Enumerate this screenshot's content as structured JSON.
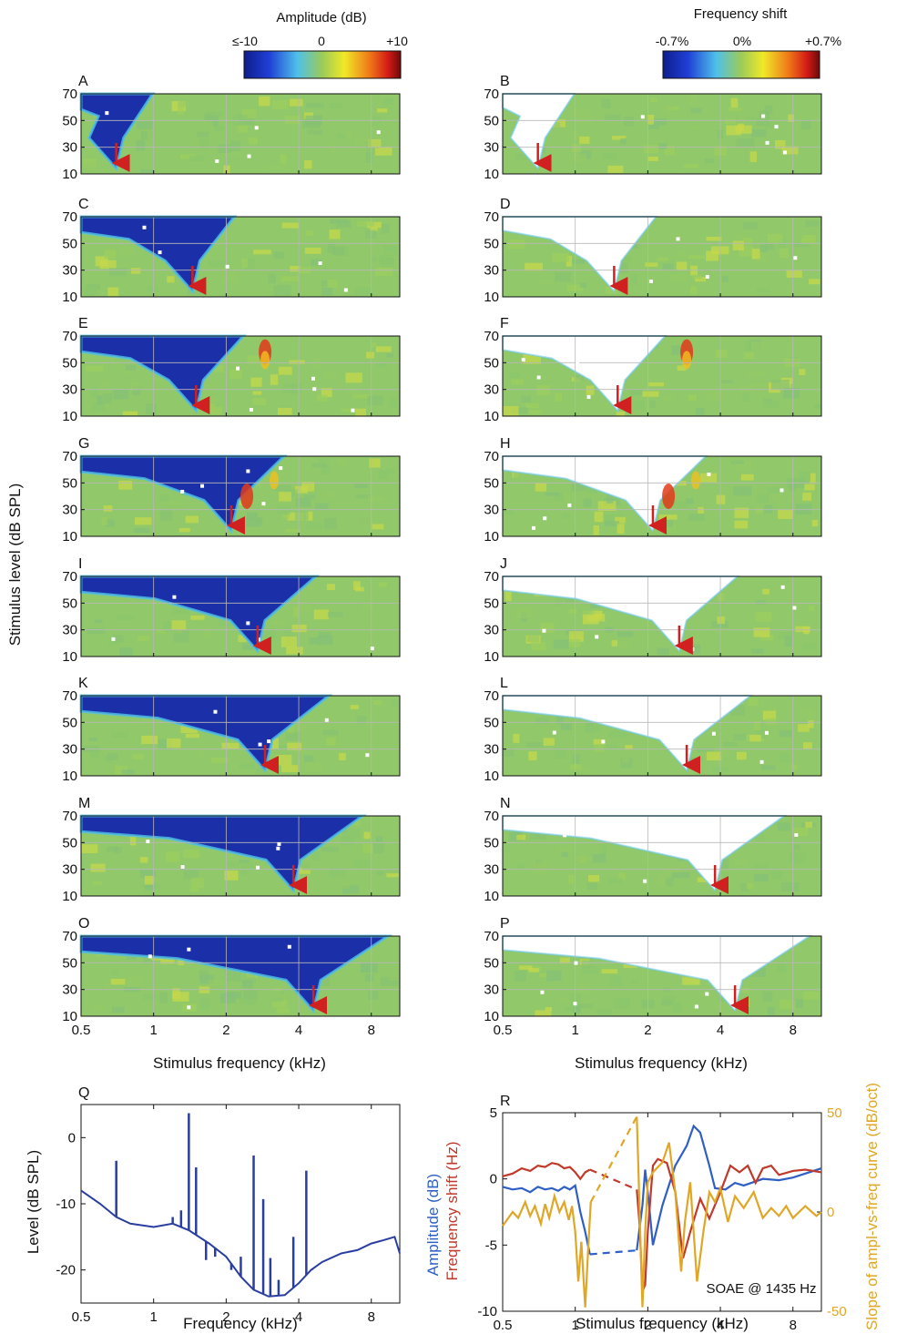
{
  "colorbars": {
    "amplitude": {
      "title": "Amplitude (dB)",
      "ticks": [
        "≤-10",
        "0",
        "+10"
      ]
    },
    "shift": {
      "title": "Frequency shift",
      "ticks": [
        "-0.7%",
        "0%",
        "+0.7%"
      ]
    }
  },
  "grid_axes": {
    "ylabel": "Stimulus level (dB SPL)",
    "xlabel": "Stimulus frequency (kHz)",
    "yticks": [
      "70",
      "50",
      "30",
      "10"
    ],
    "xticks": [
      "0.5",
      "1",
      "2",
      "4",
      "8"
    ]
  },
  "panel_labels": [
    "A",
    "B",
    "C",
    "D",
    "E",
    "F",
    "G",
    "H",
    "I",
    "J",
    "K",
    "L",
    "M",
    "N",
    "O",
    "P"
  ],
  "suppressor_khz": [
    0.7,
    1.45,
    1.5,
    2.1,
    2.7,
    2.9,
    3.8,
    4.6
  ],
  "chart_data": [
    {
      "panel": "Q",
      "type": "line",
      "xlabel": "Frequency (kHz)",
      "ylabel": "Level (dB SPL)",
      "xscale": "log",
      "xlim": [
        0.5,
        10.5
      ],
      "ylim": [
        -25,
        5
      ],
      "xticks": [
        "0.5",
        "1",
        "2",
        "4",
        "8"
      ],
      "yticks": [
        "0",
        "-10",
        "-20"
      ],
      "color": "#2a3ea0",
      "baseline": [
        [
          0.5,
          -8
        ],
        [
          0.6,
          -10
        ],
        [
          0.7,
          -12
        ],
        [
          0.8,
          -13
        ],
        [
          1.0,
          -13.5
        ],
        [
          1.2,
          -13
        ],
        [
          1.4,
          -14
        ],
        [
          1.7,
          -16
        ],
        [
          2.0,
          -18
        ],
        [
          2.3,
          -21
        ],
        [
          2.6,
          -23
        ],
        [
          3.0,
          -24
        ],
        [
          3.5,
          -23.8
        ],
        [
          4.0,
          -22
        ],
        [
          4.5,
          -20
        ],
        [
          5.0,
          -18.8
        ],
        [
          6.0,
          -17.5
        ],
        [
          7.0,
          -17
        ],
        [
          8.0,
          -16
        ],
        [
          9.0,
          -15.5
        ],
        [
          10.0,
          -15
        ],
        [
          10.5,
          -17.5
        ]
      ],
      "peaks": [
        [
          0.7,
          -3.5
        ],
        [
          1.2,
          -12
        ],
        [
          1.3,
          -11
        ],
        [
          1.4,
          3.7
        ],
        [
          1.5,
          -4.5
        ],
        [
          1.65,
          -18.5
        ],
        [
          1.8,
          -18
        ],
        [
          2.1,
          -20
        ],
        [
          2.3,
          -18
        ],
        [
          2.6,
          -2.7
        ],
        [
          2.85,
          -9.3
        ],
        [
          3.05,
          -18.2
        ],
        [
          3.3,
          -21.5
        ],
        [
          3.8,
          -15
        ],
        [
          4.3,
          -5
        ],
        [
          4.55,
          -20
        ]
      ]
    },
    {
      "panel": "R",
      "type": "line",
      "xlabel": "Stimulus frequency (kHz)",
      "ylabel_blue": "Amplitude (dB)",
      "ylabel_red": "Frequency shift (Hz)",
      "y2label": "Slope of ampl-vs-freq curve (dB/oct)",
      "annotation": "SOAE @ 1435 Hz",
      "xscale": "log",
      "xlim": [
        0.5,
        10.5
      ],
      "ylim": [
        -10,
        5
      ],
      "y2lim": [
        -50,
        50
      ],
      "xticks": [
        "0.5",
        "1",
        "2",
        "4",
        "8"
      ],
      "yticks": [
        "5",
        "0",
        "-5",
        "-10"
      ],
      "y2ticks": [
        "50",
        "0",
        "-50"
      ],
      "series": [
        {
          "key": "amplitude",
          "color": "#2f5fc4",
          "axis": "left",
          "points": [
            [
              0.5,
              -0.6
            ],
            [
              0.55,
              -0.8
            ],
            [
              0.6,
              -0.7
            ],
            [
              0.65,
              -1.0
            ],
            [
              0.7,
              -0.6
            ],
            [
              0.75,
              -0.8
            ],
            [
              0.8,
              -0.7
            ],
            [
              0.85,
              -0.9
            ],
            [
              0.9,
              -0.6
            ],
            [
              0.95,
              -0.8
            ],
            [
              1.0,
              -0.5
            ],
            [
              1.05,
              -2.5
            ],
            [
              1.1,
              -4.0
            ],
            [
              1.15,
              -5.7
            ]
          ],
          "dashed": [
            [
              1.15,
              -5.7
            ],
            [
              1.8,
              -5.4
            ]
          ],
          "points2": [
            [
              1.8,
              -5.4
            ],
            [
              1.9,
              -2.0
            ],
            [
              1.95,
              0.7
            ],
            [
              2.0,
              -1.0
            ],
            [
              2.1,
              -5.0
            ],
            [
              2.3,
              -2.0
            ],
            [
              2.6,
              1.0
            ],
            [
              2.9,
              2.5
            ],
            [
              3.1,
              4.0
            ],
            [
              3.3,
              3.5
            ],
            [
              3.6,
              1.0
            ],
            [
              3.8,
              -0.7
            ],
            [
              4.2,
              -0.8
            ],
            [
              4.6,
              -0.3
            ],
            [
              5.0,
              -0.5
            ],
            [
              6.0,
              0.0
            ],
            [
              7.0,
              -0.1
            ],
            [
              8.0,
              0.1
            ],
            [
              9.0,
              0.4
            ],
            [
              10.5,
              0.8
            ]
          ]
        },
        {
          "key": "shift",
          "color": "#c0392b",
          "axis": "left",
          "points": [
            [
              0.5,
              0.2
            ],
            [
              0.55,
              0.4
            ],
            [
              0.6,
              0.8
            ],
            [
              0.65,
              0.6
            ],
            [
              0.7,
              1.0
            ],
            [
              0.75,
              0.9
            ],
            [
              0.8,
              1.2
            ],
            [
              0.85,
              1.1
            ],
            [
              0.9,
              0.8
            ],
            [
              0.95,
              0.9
            ],
            [
              1.0,
              0.5
            ],
            [
              1.05,
              0.0
            ],
            [
              1.1,
              0.5
            ],
            [
              1.15,
              0.7
            ]
          ],
          "dashed": [
            [
              1.15,
              0.7
            ],
            [
              1.8,
              -0.8
            ]
          ],
          "points2": [
            [
              1.8,
              -0.8
            ],
            [
              1.85,
              -3.5
            ],
            [
              1.9,
              -8.5
            ],
            [
              1.95,
              -8.0
            ],
            [
              2.0,
              -4.0
            ],
            [
              2.1,
              1.0
            ],
            [
              2.2,
              1.5
            ],
            [
              2.4,
              1.2
            ],
            [
              2.6,
              -1.0
            ],
            [
              2.8,
              -6.0
            ],
            [
              3.0,
              -4.0
            ],
            [
              3.3,
              -1.5
            ],
            [
              3.6,
              -3.0
            ],
            [
              4.0,
              -1.0
            ],
            [
              4.4,
              1.0
            ],
            [
              4.8,
              0.5
            ],
            [
              5.2,
              1.0
            ],
            [
              5.6,
              -0.3
            ],
            [
              6.0,
              0.8
            ],
            [
              6.5,
              1.0
            ],
            [
              7.0,
              0.3
            ],
            [
              8.0,
              0.6
            ],
            [
              9.0,
              0.7
            ],
            [
              10.5,
              0.5
            ]
          ]
        },
        {
          "key": "slope",
          "color": "#e0a626",
          "axis": "right",
          "points": [
            [
              0.5,
              -7
            ],
            [
              0.55,
              0
            ],
            [
              0.58,
              -3
            ],
            [
              0.62,
              5
            ],
            [
              0.65,
              -2
            ],
            [
              0.68,
              3
            ],
            [
              0.72,
              -6
            ],
            [
              0.75,
              4
            ],
            [
              0.78,
              -3
            ],
            [
              0.82,
              8
            ],
            [
              0.86,
              0
            ],
            [
              0.9,
              5
            ],
            [
              0.94,
              -4
            ],
            [
              0.97,
              3
            ],
            [
              1.0,
              -10
            ],
            [
              1.03,
              -35
            ],
            [
              1.06,
              -15
            ],
            [
              1.1,
              -48
            ],
            [
              1.13,
              -20
            ],
            [
              1.16,
              5
            ]
          ],
          "dashed": [
            [
              1.16,
              5
            ],
            [
              1.8,
              48
            ]
          ],
          "points2": [
            [
              1.8,
              48
            ],
            [
              1.83,
              20
            ],
            [
              1.87,
              -20
            ],
            [
              1.9,
              -48
            ],
            [
              1.95,
              -10
            ],
            [
              2.0,
              15
            ],
            [
              2.1,
              20
            ],
            [
              2.3,
              25
            ],
            [
              2.45,
              35
            ],
            [
              2.6,
              10
            ],
            [
              2.75,
              -30
            ],
            [
              2.85,
              -5
            ],
            [
              3.0,
              15
            ],
            [
              3.2,
              -35
            ],
            [
              3.4,
              -10
            ],
            [
              3.6,
              10
            ],
            [
              3.8,
              5
            ],
            [
              4.0,
              12
            ],
            [
              4.3,
              -5
            ],
            [
              4.6,
              8
            ],
            [
              5.0,
              2
            ],
            [
              5.5,
              10
            ],
            [
              6.0,
              -3
            ],
            [
              6.5,
              2
            ],
            [
              7.0,
              -2
            ],
            [
              7.5,
              3
            ],
            [
              8.0,
              -3
            ],
            [
              9.0,
              3
            ],
            [
              10.0,
              -2
            ],
            [
              10.5,
              0
            ]
          ]
        }
      ]
    }
  ]
}
